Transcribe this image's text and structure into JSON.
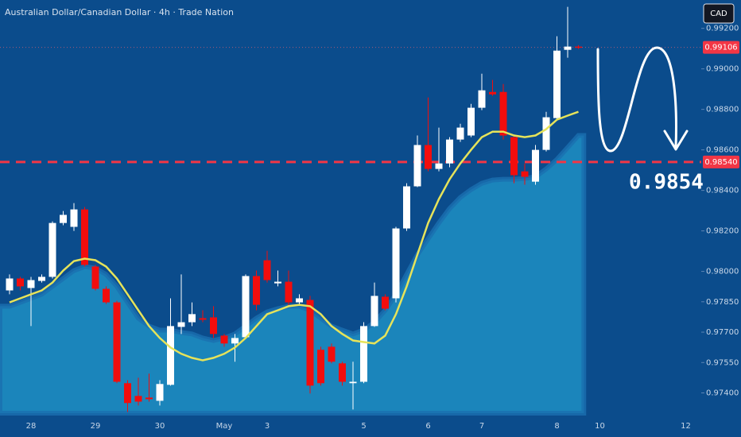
{
  "chart_data": {
    "type": "candlestick",
    "title": "Australian Dollar/Canadian Dollar · 4h · Trade Nation",
    "currency": "CAD",
    "categories": [
      null,
      null,
      "28",
      null,
      null,
      null,
      null,
      null,
      "29",
      null,
      null,
      null,
      null,
      null,
      "30",
      null,
      null,
      null,
      null,
      null,
      "May",
      null,
      null,
      null,
      "3",
      null,
      null,
      null,
      null,
      null,
      null,
      null,
      null,
      "5",
      null,
      null,
      null,
      null,
      null,
      "6",
      null,
      null,
      null,
      null,
      "7",
      null,
      null,
      null,
      null,
      null,
      null,
      "8",
      null,
      null,
      null,
      "10",
      null,
      null,
      null,
      null,
      null,
      null,
      null,
      "12"
    ],
    "open": [
      0.97906,
      0.97965,
      0.97918,
      0.97953,
      0.97973,
      0.98239,
      0.9822,
      0.98306,
      0.98024,
      0.97914,
      0.97847,
      0.97448,
      0.97385,
      0.97377,
      0.97361,
      0.9744,
      0.97726,
      0.97749,
      0.97769,
      0.97773,
      0.97683,
      0.97644,
      0.97675,
      0.97977,
      0.98055,
      0.97941,
      0.97949,
      0.97847,
      0.97859,
      0.97613,
      0.97628,
      0.97546,
      0.97448,
      0.97455,
      0.9773,
      0.97875,
      0.97867,
      0.98212,
      0.9842,
      0.98624,
      0.98506,
      0.98533,
      0.98651,
      0.98671,
      0.98808,
      0.98886,
      0.98886,
      0.98663,
      0.98494,
      0.98443,
      0.986,
      0.98757,
      0.99094,
      0.9911,
      null,
      null,
      null,
      null,
      null,
      null,
      null,
      null,
      null,
      null
    ],
    "high": [
      0.97985,
      0.97973,
      0.97973,
      0.97985,
      0.98247,
      0.98298,
      0.98337,
      0.98318,
      0.98032,
      0.97926,
      0.97855,
      0.97463,
      0.97475,
      0.97495,
      0.97463,
      0.97867,
      0.97985,
      0.97847,
      0.97808,
      0.97828,
      0.97691,
      0.97691,
      0.97985,
      0.98004,
      0.98102,
      0.98004,
      0.98004,
      0.97887,
      0.97879,
      0.97628,
      0.97644,
      0.97554,
      0.97554,
      0.97749,
      0.97945,
      0.97887,
      0.9822,
      0.98435,
      0.98671,
      0.98859,
      0.9871,
      0.98663,
      0.98729,
      0.98827,
      0.98976,
      0.98945,
      0.98925,
      0.98671,
      0.98533,
      0.98624,
      0.98788,
      0.99161,
      0.99306,
      0.99117,
      null,
      null,
      null,
      null,
      null,
      null,
      null,
      null,
      null,
      null
    ],
    "low": [
      0.97887,
      0.97906,
      0.9773,
      0.97945,
      0.97965,
      0.98228,
      0.982,
      0.98024,
      0.97906,
      0.97839,
      0.97448,
      0.97306,
      0.97338,
      0.97357,
      0.97338,
      0.97436,
      0.97691,
      0.9773,
      0.97749,
      0.97671,
      0.97628,
      0.97554,
      0.97671,
      0.97808,
      0.97945,
      0.97926,
      0.97828,
      0.97835,
      0.97397,
      0.97436,
      0.97546,
      0.97436,
      0.97318,
      0.97448,
      0.97726,
      0.97808,
      0.97847,
      0.982,
      0.98416,
      0.98494,
      0.98494,
      0.98514,
      0.98639,
      0.98663,
      0.98796,
      0.98867,
      0.98651,
      0.98435,
      0.98428,
      0.98428,
      0.98592,
      0.98749,
      0.99055,
      0.99098,
      null,
      null,
      null,
      null,
      null,
      null,
      null,
      null,
      null,
      null
    ],
    "close": [
      0.97965,
      0.97926,
      0.97957,
      0.97973,
      0.98239,
      0.98279,
      0.98306,
      0.98032,
      0.97914,
      0.97847,
      0.97455,
      0.9735,
      0.97357,
      0.97369,
      0.97444,
      0.9773,
      0.97749,
      0.97789,
      0.97761,
      0.97691,
      0.97644,
      0.97671,
      0.97977,
      0.97835,
      0.97957,
      0.97949,
      0.97847,
      0.97867,
      0.97436,
      0.97448,
      0.97554,
      0.97455,
      0.97455,
      0.9773,
      0.97879,
      0.97816,
      0.98212,
      0.9842,
      0.98624,
      0.98506,
      0.98533,
      0.98651,
      0.9871,
      0.98808,
      0.98894,
      0.98874,
      0.98671,
      0.98475,
      0.98467,
      0.986,
      0.98761,
      0.9909,
      0.9911,
      0.99106,
      null,
      null,
      null,
      null,
      null,
      null,
      null,
      null,
      null,
      null
    ],
    "up_color": "#ffffff",
    "down_color": "#f20d0d",
    "moving_average": {
      "color": "#e6e35a",
      "values": [
        0.97847,
        0.97867,
        0.97887,
        0.97906,
        0.97945,
        0.98004,
        0.98051,
        0.98063,
        0.98055,
        0.98024,
        0.97965,
        0.97887,
        0.97808,
        0.9773,
        0.97671,
        0.97624,
        0.97593,
        0.97573,
        0.97561,
        0.97573,
        0.97593,
        0.97624,
        0.97671,
        0.9773,
        0.97789,
        0.97808,
        0.97828,
        0.97835,
        0.97828,
        0.97789,
        0.9773,
        0.97691,
        0.97659,
        0.97651,
        0.97644,
        0.97683,
        0.97789,
        0.97926,
        0.98083,
        0.98239,
        0.98357,
        0.98455,
        0.98533,
        0.986,
        0.98663,
        0.9869,
        0.9869,
        0.98671,
        0.98663,
        0.98671,
        0.98702,
        0.98749,
        0.98769,
        0.98788,
        null,
        null,
        null,
        null,
        null,
        null,
        null,
        null,
        null,
        null
      ]
    },
    "area": {
      "color": "#1f8fc3",
      "values": [
        0.97828,
        0.97847,
        0.97867,
        0.97887,
        0.97926,
        0.97965,
        0.98004,
        0.98024,
        0.98016,
        0.97985,
        0.97926,
        0.97847,
        0.97769,
        0.9773,
        0.9771,
        0.9771,
        0.97698,
        0.97691,
        0.97671,
        0.97659,
        0.97671,
        0.97691,
        0.9773,
        0.97769,
        0.978,
        0.97816,
        0.97828,
        0.97828,
        0.97808,
        0.97769,
        0.9773,
        0.9771,
        0.97691,
        0.9771,
        0.97749,
        0.97808,
        0.97887,
        0.97985,
        0.98083,
        0.98161,
        0.98239,
        0.9831,
        0.98365,
        0.98404,
        0.98435,
        0.98451,
        0.98455,
        0.98455,
        0.98459,
        0.98467,
        0.98506,
        0.98553,
        0.98612,
        0.98671,
        null,
        null,
        null,
        null,
        null,
        null,
        null,
        null,
        null,
        null
      ]
    },
    "ylim": [
      0.973,
      0.9934
    ],
    "yticks": [
      {
        "value": 0.992,
        "label": "0.99200"
      },
      {
        "value": 0.99,
        "label": "0.99000"
      },
      {
        "value": 0.988,
        "label": "0.98800"
      },
      {
        "value": 0.986,
        "label": "0.98600"
      },
      {
        "value": 0.984,
        "label": "0.98400"
      },
      {
        "value": 0.982,
        "label": "0.98200"
      },
      {
        "value": 0.98,
        "label": "0.98000"
      },
      {
        "value": 0.9785,
        "label": "0.97850"
      },
      {
        "value": 0.977,
        "label": "0.97700"
      },
      {
        "value": 0.9755,
        "label": "0.97550"
      },
      {
        "value": 0.974,
        "label": "0.97400"
      }
    ],
    "last_price": 0.99106,
    "level": {
      "value": 0.9854,
      "label": "0.98540"
    },
    "annotation": "0.9854"
  }
}
